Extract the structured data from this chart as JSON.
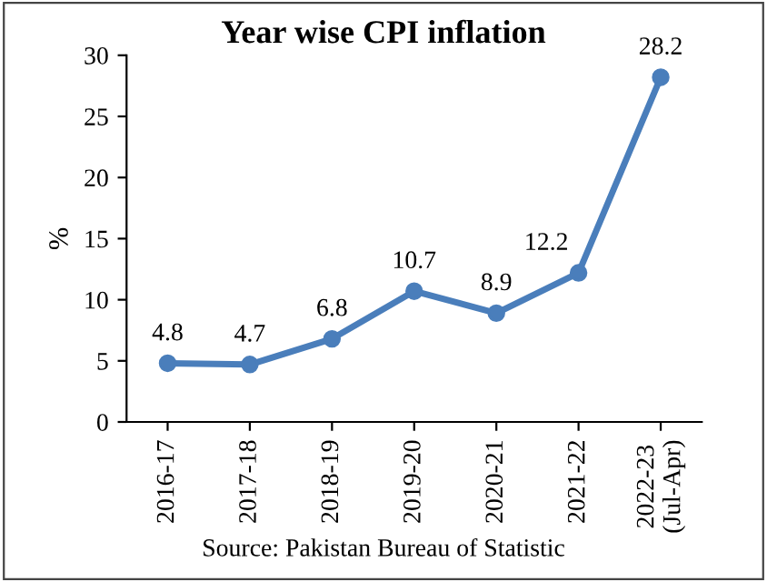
{
  "chart_data": {
    "type": "line",
    "title": "Year wise CPI inflation",
    "ylabel": "%",
    "categories": [
      "2016-17",
      "2017-18",
      "2018-19",
      "2019-20",
      "2020-21",
      "2021-22",
      "2022-23\n(Jul-Apr)"
    ],
    "series": [
      {
        "color": "#4a7ebb",
        "values": [
          4.8,
          4.7,
          6.8,
          10.7,
          8.9,
          12.2,
          28.2
        ]
      }
    ],
    "ylim": [
      0,
      30
    ],
    "yticks": [
      0,
      5,
      10,
      15,
      20,
      25,
      30
    ],
    "grid": false,
    "marker": "circle",
    "line_style": "solid",
    "data_labels": true,
    "annotations": [
      "Source: Pakistan Bureau of Statistic"
    ]
  }
}
